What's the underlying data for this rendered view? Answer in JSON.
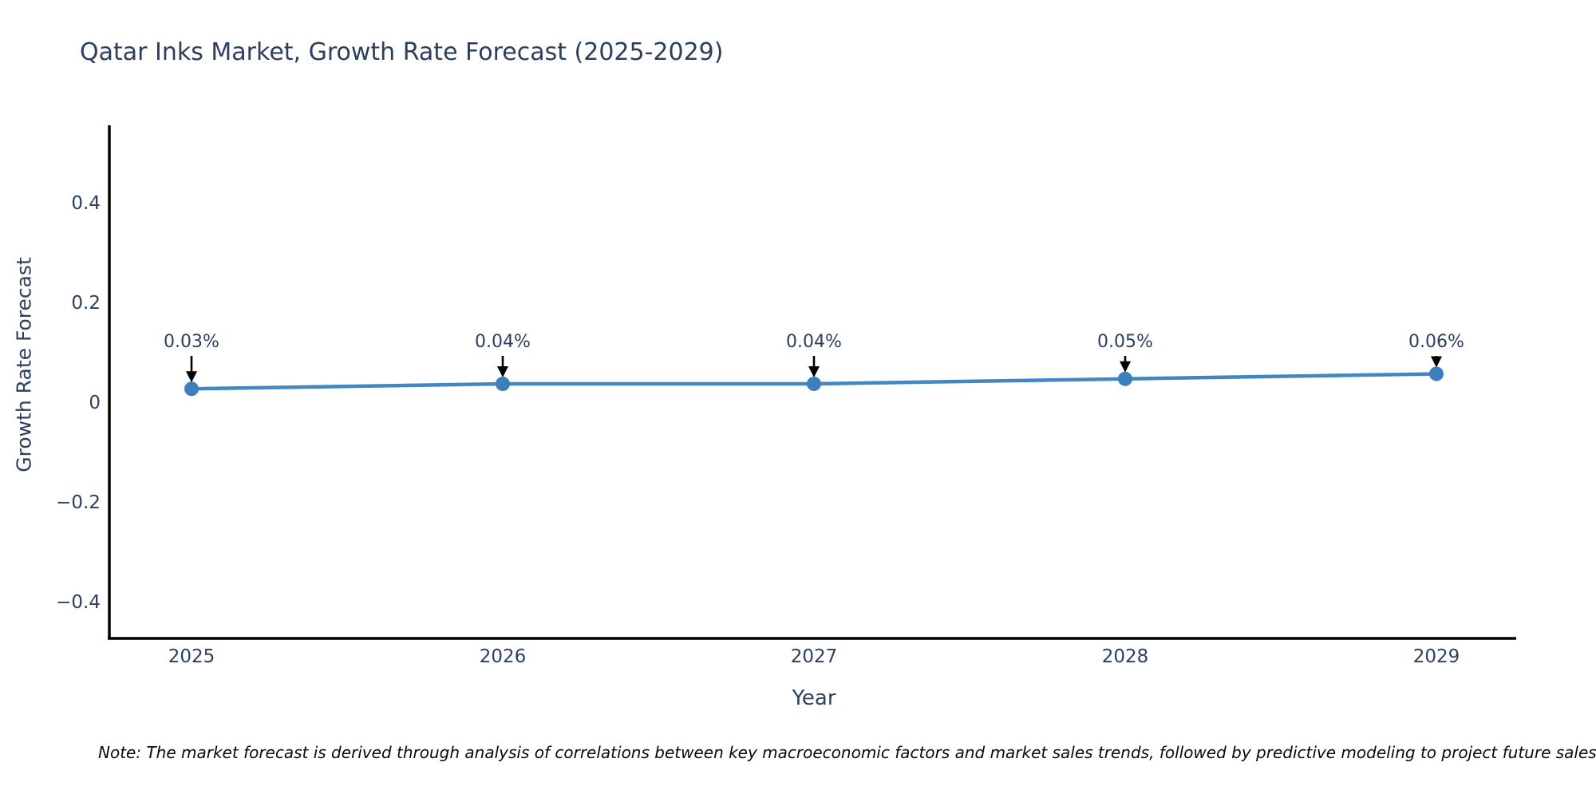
{
  "chart": {
    "title": "Qatar Inks Market, Growth Rate Forecast (2025-2029)",
    "x_axis_label": "Year",
    "y_axis_label": "Growth Rate Forecast",
    "note": "Note: The market forecast is derived through analysis of correlations between key macroeconomic factors and market sales trends, followed by predictive modeling to project future sales.",
    "colors": {
      "title_text": "#2b3f5e",
      "tick_text": "#2b3f5e",
      "axis_line": "#000000",
      "line": "#4386c0",
      "marker": "#3d7ebd",
      "arrow": "#000000",
      "background": "#ffffff",
      "note_text": "#0a0a0a"
    }
  },
  "chart_data": {
    "type": "line",
    "title": "Qatar Inks Market, Growth Rate Forecast (2025-2029)",
    "xlabel": "Year",
    "ylabel": "Growth Rate Forecast",
    "x": [
      2025,
      2026,
      2027,
      2028,
      2029
    ],
    "values": [
      0.03,
      0.04,
      0.04,
      0.05,
      0.06
    ],
    "point_labels": [
      "0.03%",
      "0.04%",
      "0.04%",
      "0.05%",
      "0.06%"
    ],
    "x_tick_labels": [
      "2025",
      "2026",
      "2027",
      "2028",
      "2029"
    ],
    "y_ticks": [
      {
        "value": 0.4,
        "label": "0.4"
      },
      {
        "value": 0.2,
        "label": "0.2"
      },
      {
        "value": 0,
        "label": "0"
      },
      {
        "value": -0.2,
        "label": "−0.2"
      },
      {
        "value": -0.4,
        "label": "−0.4"
      }
    ],
    "ylim": [
      -0.47,
      0.55
    ],
    "grid": false,
    "legend": false,
    "line_color": "#4386c0",
    "marker_color": "#3d7ebd",
    "annotation_arrow_color": "#000000"
  }
}
